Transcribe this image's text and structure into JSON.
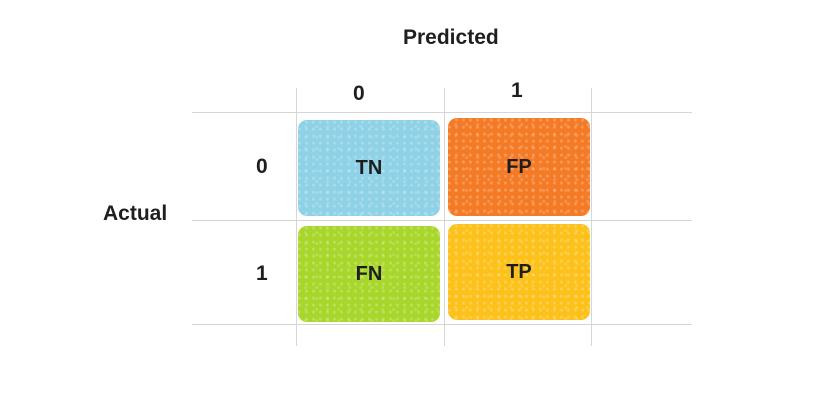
{
  "header": {
    "predicted": "Predicted",
    "actual": "Actual"
  },
  "columns": [
    "0",
    "1"
  ],
  "rows": [
    "0",
    "1"
  ],
  "cells": [
    {
      "label": "TN",
      "color": "#8fd1e6"
    },
    {
      "label": "FP",
      "color": "#f57a25"
    },
    {
      "label": "FN",
      "color": "#a8d62b"
    },
    {
      "label": "TP",
      "color": "#fcc11a"
    }
  ]
}
